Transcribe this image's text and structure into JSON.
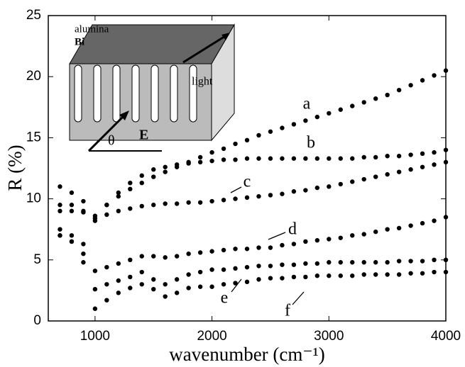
{
  "chart_data": {
    "type": "scatter",
    "xlabel": "wavenumber (cm⁻¹)",
    "ylabel": "R (%)",
    "xlim": [
      600,
      4000
    ],
    "xticks": [
      1000,
      2000,
      3000,
      4000
    ],
    "ylim": [
      0,
      25
    ],
    "yticks": [
      0,
      5,
      10,
      15,
      20,
      25
    ],
    "annotations": [
      "alumina",
      "Bi",
      "light",
      "θ",
      "E"
    ],
    "x": [
      700,
      800,
      900,
      1000,
      1100,
      1200,
      1300,
      1400,
      1500,
      1600,
      1700,
      1800,
      1900,
      2000,
      2100,
      2200,
      2300,
      2400,
      2500,
      2600,
      2700,
      2800,
      2900,
      3000,
      3100,
      3200,
      3300,
      3400,
      3500,
      3600,
      3700,
      3800,
      3900,
      4000
    ],
    "series": [
      {
        "name": "a",
        "color": "#000000",
        "values": [
          9.5,
          9.5,
          9,
          8.6,
          9.5,
          10.2,
          10.8,
          11.3,
          11.8,
          12.2,
          12.6,
          13,
          13.4,
          13.8,
          14.1,
          14.5,
          14.8,
          15.2,
          15.5,
          15.8,
          16.1,
          16.4,
          16.7,
          17,
          17.3,
          17.6,
          17.9,
          18.2,
          18.5,
          18.9,
          19.3,
          19.7,
          20.1,
          20.5
        ]
      },
      {
        "name": "b",
        "color": "#000000",
        "values": [
          11,
          10.5,
          9.8,
          8.2,
          9.5,
          10.5,
          11.3,
          11.9,
          12.4,
          12.6,
          12.8,
          12.9,
          13,
          13.1,
          13.2,
          13.2,
          13.3,
          13.3,
          13.3,
          13.3,
          13.3,
          13.3,
          13.3,
          13.3,
          13.3,
          13.3,
          13.4,
          13.4,
          13.5,
          13.5,
          13.6,
          13.7,
          13.8,
          14
        ]
      },
      {
        "name": "c",
        "color": "#000000",
        "values": [
          9,
          9,
          8.9,
          8.4,
          8.7,
          9,
          9.2,
          9.4,
          9.5,
          9.6,
          9.6,
          9.7,
          9.7,
          9.8,
          9.9,
          10,
          10.1,
          10.2,
          10.3,
          10.4,
          10.6,
          10.7,
          10.9,
          11,
          11.2,
          11.4,
          11.6,
          11.8,
          12,
          12.2,
          12.4,
          12.6,
          12.8,
          13
        ]
      },
      {
        "name": "d",
        "color": "#000000",
        "values": [
          7.5,
          7,
          6.3,
          4.1,
          4.4,
          4.7,
          5,
          5.3,
          5.3,
          5.2,
          5.3,
          5.5,
          5.6,
          5.7,
          5.8,
          5.9,
          5.9,
          6,
          6,
          6.2,
          6.3,
          6.5,
          6.6,
          6.7,
          6.8,
          7,
          7.1,
          7.3,
          7.5,
          7.6,
          7.8,
          8,
          8.2,
          8.5
        ]
      },
      {
        "name": "e",
        "color": "#000000",
        "values": [
          7,
          6.5,
          5.5,
          2.6,
          3,
          3.3,
          3.6,
          4,
          3.4,
          3,
          3.4,
          3.8,
          4,
          4.2,
          4.2,
          4.3,
          4.4,
          4.5,
          4.5,
          4.6,
          4.6,
          4.7,
          4.7,
          4.8,
          4.8,
          4.8,
          4.8,
          4.8,
          4.8,
          4.9,
          4.9,
          4.9,
          5,
          5
        ]
      },
      {
        "name": "f",
        "color": "#000000",
        "values": [
          7,
          6.5,
          4.8,
          1,
          1.7,
          2.3,
          2.7,
          3,
          2.6,
          2,
          2.3,
          2.7,
          2.8,
          2.8,
          3,
          3.1,
          3.2,
          3.4,
          3.5,
          3.5,
          3.6,
          3.6,
          3.7,
          3.7,
          3.7,
          3.7,
          3.8,
          3.8,
          3.8,
          3.8,
          3.9,
          3.9,
          4,
          4
        ]
      }
    ]
  }
}
